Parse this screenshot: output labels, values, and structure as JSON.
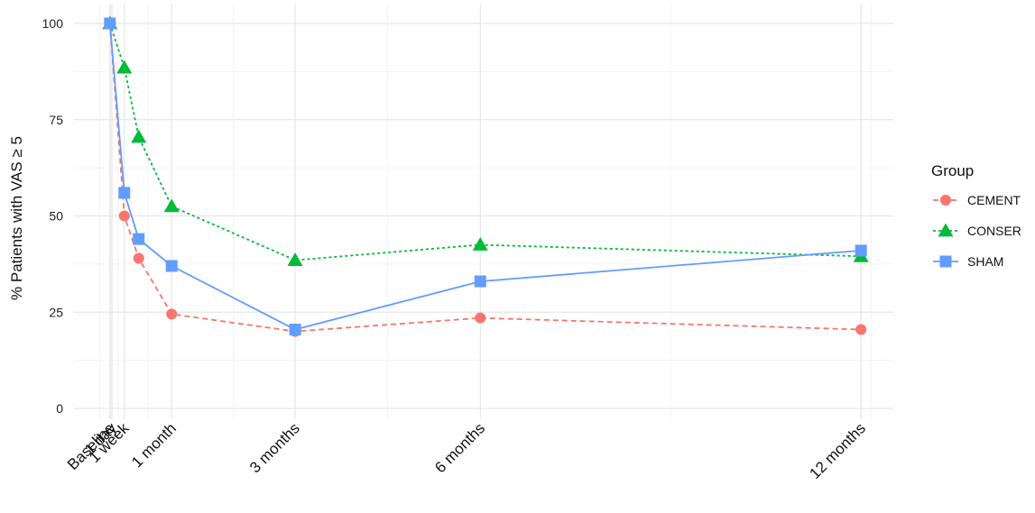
{
  "chart_data": {
    "type": "line",
    "ylabel": "% Patients with VAS ≥ 5",
    "ylim": [
      0,
      100
    ],
    "yticks": [
      0,
      25,
      50,
      75,
      100
    ],
    "xticks": [
      {
        "label": "Baseline",
        "x": 0
      },
      {
        "label": "1 day",
        "x": 1
      },
      {
        "label": "1 week",
        "x": 7
      },
      {
        "label": "1 month",
        "x": 30
      },
      {
        "label": "3 months",
        "x": 90
      },
      {
        "label": "6 months",
        "x": 180
      },
      {
        "label": "12 months",
        "x": 365
      }
    ],
    "legend_title": "Group",
    "legend_position": "right",
    "grid": true,
    "series": [
      {
        "name": "CEMENT",
        "color": "#F8766D",
        "shape": "circle",
        "dash": "dashed",
        "x": [
          0,
          7,
          14,
          30,
          90,
          180,
          365
        ],
        "y": [
          100,
          50,
          39,
          24.5,
          20,
          23.5,
          20.5
        ]
      },
      {
        "name": "CONSER",
        "color": "#00BA38",
        "shape": "triangle",
        "dash": "dotted",
        "x": [
          0,
          7,
          14,
          30,
          90,
          180,
          365
        ],
        "y": [
          100,
          88.5,
          70.5,
          52.5,
          38.5,
          42.5,
          39.5
        ]
      },
      {
        "name": "SHAM",
        "color": "#619CFF",
        "shape": "square",
        "dash": "solid",
        "x": [
          0,
          7,
          14,
          30,
          90,
          180,
          365
        ],
        "y": [
          100,
          56,
          44,
          37,
          20.5,
          33,
          41
        ]
      }
    ]
  }
}
